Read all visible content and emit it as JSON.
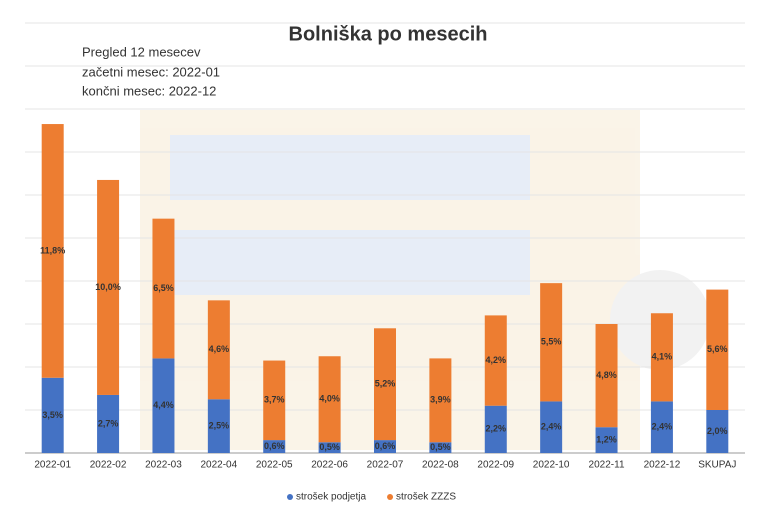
{
  "chart_data": {
    "type": "stacked_bar",
    "title": "Bolniška po mesecih",
    "subtitle": [
      "Pregled 12 mesecev",
      "začetni mesec: 2022-01",
      "končni mesec: 2022-12"
    ],
    "categories": [
      "2022-01",
      "2022-02",
      "2022-03",
      "2022-04",
      "2022-05",
      "2022-06",
      "2022-07",
      "2022-08",
      "2022-09",
      "2022-10",
      "2022-11",
      "2022-12",
      "SKUPAJ"
    ],
    "series": [
      {
        "name": "strošek podjetja",
        "color": "#4472c4",
        "values": [
          3.5,
          2.7,
          4.4,
          2.5,
          0.6,
          0.5,
          0.6,
          0.5,
          2.2,
          2.4,
          1.2,
          2.4,
          2.0
        ],
        "value_labels": [
          "3,5%",
          "2,7%",
          "4,4%",
          "2,5%",
          "0,6%",
          "0,5%",
          "0,6%",
          "0,5%",
          "2,2%",
          "2,4%",
          "1,2%",
          "2,4%",
          "2,0%"
        ]
      },
      {
        "name": "strošek ZZZS",
        "color": "#ed7d31",
        "values": [
          11.8,
          10.0,
          6.5,
          4.6,
          3.7,
          4.0,
          5.2,
          3.9,
          4.2,
          5.5,
          4.8,
          4.1,
          5.6
        ],
        "value_labels": [
          "11,8%",
          "10,0%",
          "6,5%",
          "4,6%",
          "3,7%",
          "4,0%",
          "5,2%",
          "3,9%",
          "4,2%",
          "5,5%",
          "4,8%",
          "4,1%",
          "5,6%"
        ]
      }
    ],
    "ylim": [
      0,
      20
    ],
    "grid": true,
    "legend": "bottom"
  }
}
